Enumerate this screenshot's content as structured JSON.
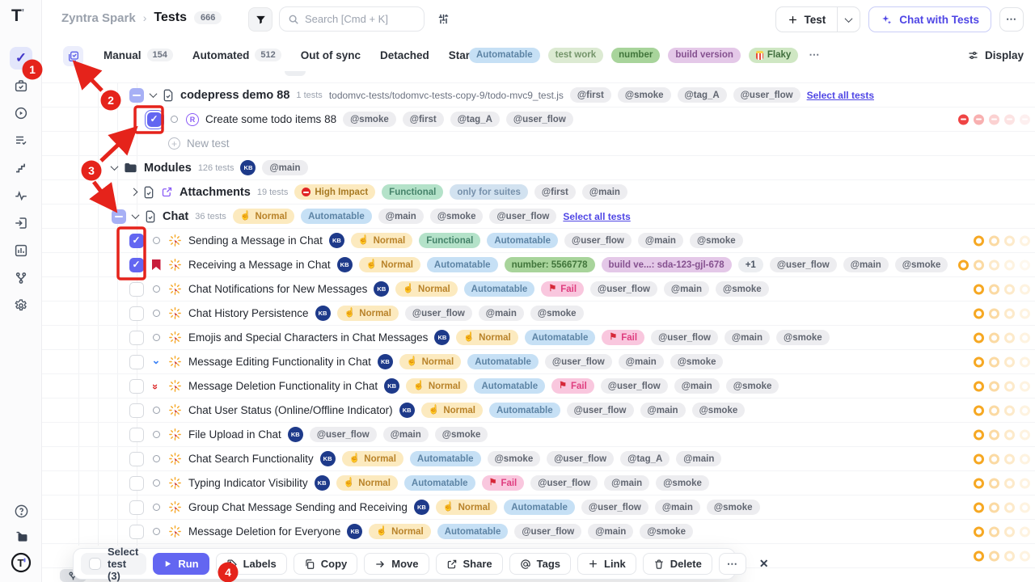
{
  "app": {
    "logo": "T",
    "breadcrumb_project": "Zyntra Spark",
    "breadcrumb_sep": "›",
    "breadcrumb_page": "Tests",
    "count_badge": "666",
    "search_placeholder": "Search [Cmd + K]"
  },
  "header_actions": {
    "new_test_label": "Test",
    "chat_label": "Chat with Tests",
    "more_label": "⋯"
  },
  "filter_bar": {
    "tabs": [
      {
        "label": "Manual",
        "count": "154"
      },
      {
        "label": "Automated",
        "count": "512"
      },
      {
        "label": "Out of sync",
        "count": ""
      },
      {
        "label": "Detached",
        "count": ""
      },
      {
        "label": "Starred",
        "count": ""
      }
    ],
    "tag_filters": [
      {
        "label": "Automatable",
        "cls": "p-auto",
        "icon": ""
      },
      {
        "label": "test work",
        "cls": "p-lgreen",
        "icon": ""
      },
      {
        "label": "number",
        "cls": "p-green",
        "icon": ""
      },
      {
        "label": "build version",
        "cls": "p-purple",
        "icon": ""
      },
      {
        "label": "Flaky",
        "cls": "p-green2",
        "icon": "popcorn"
      }
    ],
    "more_label": "⋯",
    "display_label": "Display"
  },
  "colors": {
    "accent": "#6366f1",
    "annotation_red": "#e5231b",
    "dot_amber": "#f6a823",
    "dot_red": "#ef4444"
  },
  "tree": {
    "rows": [
      {
        "partial": "top"
      },
      {
        "pad": 100,
        "checkbox": "ind",
        "chevron": "down",
        "icon": "doc",
        "title": "codepress demo 88",
        "title_cls": "t-suite",
        "meta": "1 tests",
        "path": "todomvc-tests/todomvc-tests-copy-9/todo-mvc9_test.js",
        "tags": [
          "@first",
          "@smoke",
          "@tag_A",
          "@user_flow"
        ],
        "link": "Select all tests"
      },
      {
        "pad": 122,
        "checkbox": "checked",
        "cb_ring": true,
        "status": "circle",
        "icon": "cpress",
        "title": "Create some todo items 88",
        "tags": [
          "@smoke",
          "@first",
          "@tag_A",
          "@user_flow"
        ],
        "dots": {
          "c": "red",
          "n": 5
        }
      },
      {
        "pad": 148,
        "icon": "plus",
        "title": "New test",
        "title_cls": "t-muted"
      },
      {
        "pad": 78,
        "chevron": "down",
        "icon": "folder",
        "title": "Modules",
        "title_cls": "t-suite",
        "meta": "126 tests",
        "owner": "KB",
        "tags": [
          "@main"
        ]
      },
      {
        "pad": 102,
        "chevron": "right",
        "icon": "doc",
        "icon2": "shareout",
        "title": "Attachments",
        "title_cls": "t-suite",
        "meta": "19 tests",
        "pills": [
          {
            "t": "High Impact",
            "s": "p-imp",
            "ic": "noentry"
          },
          {
            "t": "Functional",
            "s": "p-func"
          },
          {
            "t": "only for suites",
            "s": "p-only"
          }
        ],
        "tags": [
          "@first",
          "@main"
        ]
      },
      {
        "pad": 78,
        "checkbox": "ind",
        "chevron": "down",
        "icon": "doc",
        "title": "Chat",
        "title_cls": "t-suite",
        "meta": "36 tests",
        "pills": [
          {
            "t": "Normal",
            "s": "p-sev",
            "ic": "hand"
          },
          {
            "t": "Automatable",
            "s": "p-auto"
          }
        ],
        "tags": [
          "@main",
          "@smoke",
          "@user_flow"
        ],
        "link": "Select all tests"
      },
      {
        "pad": 100,
        "checkbox": "checked",
        "status": "circle",
        "icon": "burst",
        "title": "Sending a Message in Chat",
        "owner": "KB",
        "pills": [
          {
            "t": "Normal",
            "s": "p-sev",
            "ic": "hand"
          },
          {
            "t": "Functional",
            "s": "p-func"
          },
          {
            "t": "Automatable",
            "s": "p-auto"
          }
        ],
        "tags": [
          "@user_flow",
          "@main",
          "@smoke"
        ],
        "dots": {
          "c": "amber",
          "n": 4
        }
      },
      {
        "pad": 100,
        "checkbox": "checked",
        "status": "book",
        "icon": "burst",
        "title": "Receiving a Message in Chat",
        "owner": "KB",
        "pills": [
          {
            "t": "Normal",
            "s": "p-sev",
            "ic": "hand"
          },
          {
            "t": "Automatable",
            "s": "p-auto"
          },
          {
            "t": "number: 5566778",
            "s": "p-green"
          },
          {
            "t": "build ve...: sda-123-gjl-678",
            "s": "p-purple"
          },
          {
            "t": "+1",
            "s": "p-plus"
          }
        ],
        "tags": [
          "@user_flow",
          "@main",
          "@smoke"
        ],
        "dots": {
          "c": "amber",
          "n": 5
        }
      },
      {
        "pad": 100,
        "checkbox": "un",
        "status": "circle",
        "icon": "burst",
        "title": "Chat Notifications for New Messages",
        "owner": "KB",
        "pills": [
          {
            "t": "Normal",
            "s": "p-sev",
            "ic": "hand"
          },
          {
            "t": "Automatable",
            "s": "p-auto"
          },
          {
            "t": "Fail",
            "s": "p-fail",
            "ic": "flag"
          }
        ],
        "tags": [
          "@user_flow",
          "@main",
          "@smoke"
        ],
        "dots": {
          "c": "amber",
          "n": 4
        }
      },
      {
        "pad": 100,
        "checkbox": "un",
        "status": "circle",
        "icon": "burst",
        "title": "Chat History Persistence",
        "owner": "KB",
        "pills": [
          {
            "t": "Normal",
            "s": "p-sev",
            "ic": "hand"
          }
        ],
        "tags": [
          "@user_flow",
          "@main",
          "@smoke"
        ],
        "dots": {
          "c": "amber",
          "n": 4
        }
      },
      {
        "pad": 100,
        "checkbox": "un",
        "status": "circle",
        "icon": "burst",
        "title": "Emojis and Special Characters in Chat Messages",
        "owner": "KB",
        "pills": [
          {
            "t": "Normal",
            "s": "p-sev",
            "ic": "hand"
          },
          {
            "t": "Automatable",
            "s": "p-auto"
          },
          {
            "t": "Fail",
            "s": "p-fail",
            "ic": "flag"
          }
        ],
        "tags": [
          "@user_flow",
          "@main",
          "@smoke"
        ],
        "dots": {
          "c": "amber",
          "n": 4
        }
      },
      {
        "pad": 100,
        "checkbox": "un",
        "status": "low",
        "icon": "burst",
        "title": "Message Editing Functionality in Chat",
        "owner": "KB",
        "pills": [
          {
            "t": "Normal",
            "s": "p-sev",
            "ic": "hand"
          },
          {
            "t": "Automatable",
            "s": "p-auto"
          }
        ],
        "tags": [
          "@user_flow",
          "@main",
          "@smoke"
        ],
        "dots": {
          "c": "amber",
          "n": 4
        }
      },
      {
        "pad": 100,
        "checkbox": "un",
        "status": "high",
        "icon": "burst",
        "title": "Message Deletion Functionality in Chat",
        "owner": "KB",
        "pills": [
          {
            "t": "Normal",
            "s": "p-sev",
            "ic": "hand"
          },
          {
            "t": "Automatable",
            "s": "p-auto"
          },
          {
            "t": "Fail",
            "s": "p-fail",
            "ic": "flag"
          }
        ],
        "tags": [
          "@user_flow",
          "@main",
          "@smoke"
        ],
        "dots": {
          "c": "amber",
          "n": 4
        }
      },
      {
        "pad": 100,
        "checkbox": "un",
        "status": "circle",
        "icon": "burst",
        "title": "Chat User Status (Online/Offline Indicator)",
        "owner": "KB",
        "pills": [
          {
            "t": "Normal",
            "s": "p-sev",
            "ic": "hand"
          },
          {
            "t": "Automatable",
            "s": "p-auto"
          }
        ],
        "tags": [
          "@user_flow",
          "@main",
          "@smoke"
        ],
        "dots": {
          "c": "amber",
          "n": 4
        }
      },
      {
        "pad": 100,
        "checkbox": "un",
        "status": "circle",
        "icon": "burst",
        "title": "File Upload in Chat",
        "owner": "KB",
        "tags": [
          "@user_flow",
          "@main",
          "@smoke"
        ],
        "dots": {
          "c": "amber",
          "n": 4
        }
      },
      {
        "pad": 100,
        "checkbox": "un",
        "status": "circle",
        "icon": "burst",
        "title": "Chat Search Functionality",
        "owner": "KB",
        "pills": [
          {
            "t": "Normal",
            "s": "p-sev",
            "ic": "hand"
          },
          {
            "t": "Automatable",
            "s": "p-auto"
          }
        ],
        "tags": [
          "@smoke",
          "@user_flow",
          "@tag_A",
          "@main"
        ],
        "dots": {
          "c": "amber",
          "n": 4
        }
      },
      {
        "pad": 100,
        "checkbox": "un",
        "status": "circle",
        "icon": "burst",
        "title": "Typing Indicator Visibility",
        "owner": "KB",
        "pills": [
          {
            "t": "Normal",
            "s": "p-sev",
            "ic": "hand"
          },
          {
            "t": "Automatable",
            "s": "p-auto"
          },
          {
            "t": "Fail",
            "s": "p-fail",
            "ic": "flag"
          }
        ],
        "tags": [
          "@user_flow",
          "@main",
          "@smoke"
        ],
        "dots": {
          "c": "amber",
          "n": 4
        }
      },
      {
        "pad": 100,
        "checkbox": "un",
        "status": "circle",
        "icon": "burst",
        "title": "Group Chat Message Sending and Receiving",
        "owner": "KB",
        "pills": [
          {
            "t": "Normal",
            "s": "p-sev",
            "ic": "hand"
          },
          {
            "t": "Automatable",
            "s": "p-auto"
          }
        ],
        "tags": [
          "@user_flow",
          "@main",
          "@smoke"
        ],
        "dots": {
          "c": "amber",
          "n": 4
        }
      },
      {
        "pad": 100,
        "checkbox": "un",
        "status": "circle",
        "icon": "burst",
        "title": "Message Deletion for Everyone",
        "owner": "KB",
        "pills": [
          {
            "t": "Normal",
            "s": "p-sev",
            "ic": "hand"
          },
          {
            "t": "Automatable",
            "s": "p-auto"
          }
        ],
        "tags": [
          "@user_flow",
          "@main",
          "@smoke"
        ],
        "dots": {
          "c": "amber",
          "n": 4
        }
      },
      {
        "pad": 100,
        "dots": {
          "c": "amber",
          "n": 4
        }
      }
    ]
  },
  "action_bar": {
    "select_label": "Select test (3)",
    "buttons": [
      {
        "label": "Run",
        "icon": "run",
        "style": "primary"
      },
      {
        "label": "Labels",
        "icon": "label"
      },
      {
        "label": "Copy",
        "icon": "copy"
      },
      {
        "label": "Move",
        "icon": "move"
      },
      {
        "label": "Share",
        "icon": "share"
      },
      {
        "label": "Tags",
        "icon": "at"
      },
      {
        "label": "Link",
        "icon": "pluslink"
      },
      {
        "label": "Delete",
        "icon": "trash"
      }
    ],
    "more_label": "⋯",
    "close_label": "✕"
  },
  "annotations": {
    "labels": [
      "1",
      "2",
      "3",
      "4"
    ]
  }
}
